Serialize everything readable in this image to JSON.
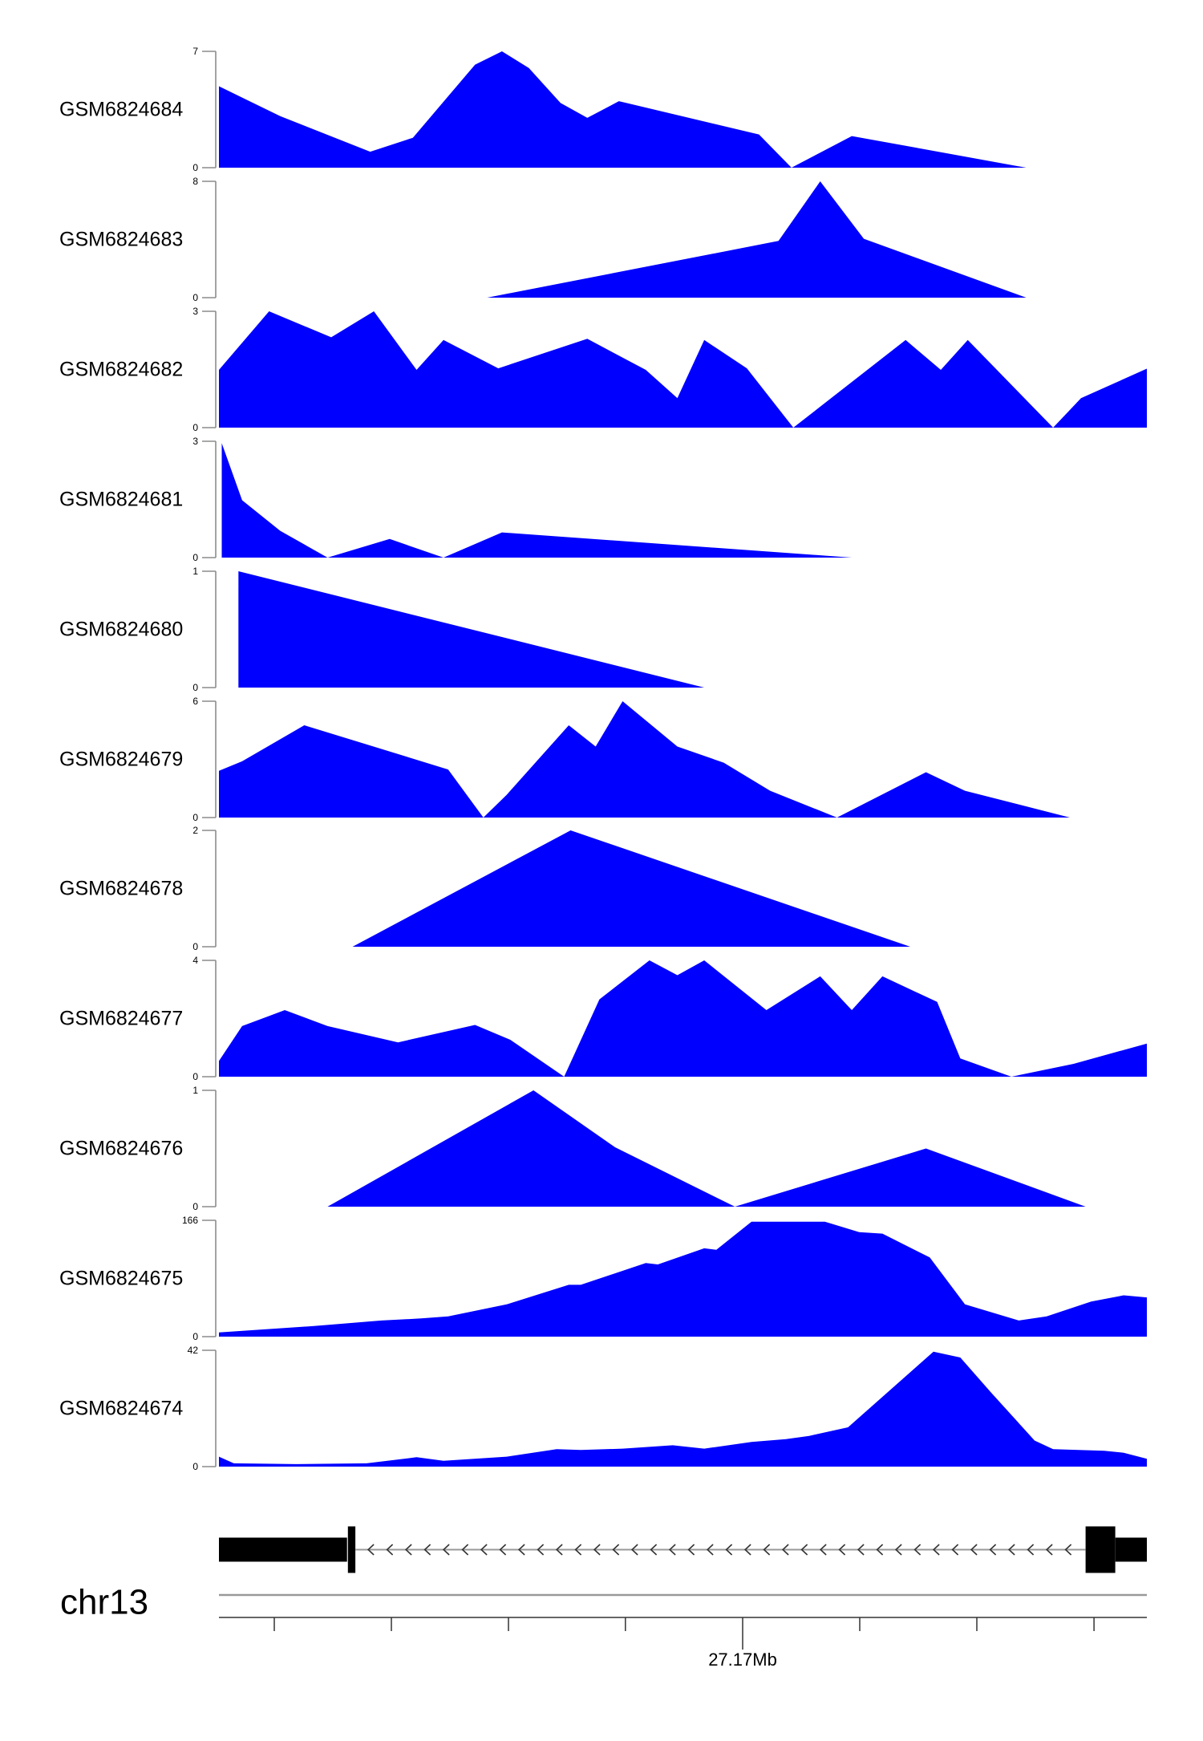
{
  "page": {
    "background": "#ffffff"
  },
  "chart_data": {
    "type": "area",
    "layout_hint": "stacked genome-browser coverage tracks, filled area plots, y axis ticks at 0 and max only",
    "colors": {
      "signal": "#0000ff",
      "gene": "#000000",
      "axis_gray": "#8c8c8c",
      "line_gray": "#999999",
      "tick_dark": "#333333",
      "text": "#000000"
    },
    "y_axis_zero": "0",
    "region": {
      "chromosome": "chr13"
    },
    "tracks": [
      {
        "label": "GSM6824684",
        "ymax": 7,
        "points": [
          [
            0.0,
            4.9
          ],
          [
            0.066,
            3.1
          ],
          [
            0.163,
            0.96
          ],
          [
            0.209,
            1.8
          ],
          [
            0.276,
            6.2
          ],
          [
            0.305,
            7
          ],
          [
            0.334,
            6
          ],
          [
            0.368,
            3.9
          ],
          [
            0.397,
            3
          ],
          [
            0.431,
            4
          ],
          [
            0.582,
            2
          ],
          [
            0.617,
            0
          ],
          [
            0.682,
            1.9
          ],
          [
            0.87,
            0
          ]
        ]
      },
      {
        "label": "GSM6824683",
        "ymax": 8,
        "points": [
          [
            0.289,
            0
          ],
          [
            0.603,
            3.9
          ],
          [
            0.648,
            8
          ],
          [
            0.695,
            4.05
          ],
          [
            0.87,
            0
          ]
        ]
      },
      {
        "label": "GSM6824682",
        "ymax": 3,
        "points": [
          [
            0.0,
            1.49
          ],
          [
            0.054,
            3
          ],
          [
            0.121,
            2.33
          ],
          [
            0.167,
            3
          ],
          [
            0.213,
            1.49
          ],
          [
            0.242,
            2.26
          ],
          [
            0.301,
            1.53
          ],
          [
            0.397,
            2.29
          ],
          [
            0.46,
            1.49
          ],
          [
            0.494,
            0.76
          ],
          [
            0.523,
            2.26
          ],
          [
            0.569,
            1.53
          ],
          [
            0.619,
            0
          ],
          [
            0.74,
            2.26
          ],
          [
            0.778,
            1.49
          ],
          [
            0.807,
            2.26
          ],
          [
            0.899,
            0
          ],
          [
            0.929,
            0.76
          ],
          [
            1.0,
            1.52
          ]
        ]
      },
      {
        "label": "GSM6824681",
        "ymax": 3,
        "points": [
          [
            0.003,
            2.95
          ],
          [
            0.025,
            1.48
          ],
          [
            0.066,
            0.69
          ],
          [
            0.117,
            0
          ],
          [
            0.184,
            0.48
          ],
          [
            0.242,
            0
          ],
          [
            0.305,
            0.65
          ],
          [
            0.682,
            0
          ]
        ]
      },
      {
        "label": "GSM6824680",
        "ymax": 1,
        "points": [
          [
            0.021,
            1
          ],
          [
            0.523,
            0
          ]
        ]
      },
      {
        "label": "GSM6824679",
        "ymax": 6,
        "points": [
          [
            0.0,
            2.41
          ],
          [
            0.025,
            2.9
          ],
          [
            0.092,
            4.76
          ],
          [
            0.247,
            2.48
          ],
          [
            0.285,
            0
          ],
          [
            0.31,
            1.17
          ],
          [
            0.377,
            4.76
          ],
          [
            0.406,
            3.66
          ],
          [
            0.435,
            6
          ],
          [
            0.494,
            3.66
          ],
          [
            0.544,
            2.83
          ],
          [
            0.594,
            1.38
          ],
          [
            0.666,
            0
          ],
          [
            0.762,
            2.34
          ],
          [
            0.804,
            1.38
          ],
          [
            0.917,
            0
          ]
        ]
      },
      {
        "label": "GSM6824678",
        "ymax": 2,
        "points": [
          [
            0.144,
            0
          ],
          [
            0.379,
            2
          ],
          [
            0.745,
            0
          ]
        ]
      },
      {
        "label": "GSM6824677",
        "ymax": 4,
        "points": [
          [
            0.0,
            0.54
          ],
          [
            0.025,
            1.74
          ],
          [
            0.071,
            2.29
          ],
          [
            0.117,
            1.74
          ],
          [
            0.193,
            1.18
          ],
          [
            0.276,
            1.78
          ],
          [
            0.314,
            1.27
          ],
          [
            0.372,
            0
          ],
          [
            0.41,
            2.66
          ],
          [
            0.464,
            4
          ],
          [
            0.494,
            3.49
          ],
          [
            0.523,
            4
          ],
          [
            0.59,
            2.29
          ],
          [
            0.648,
            3.45
          ],
          [
            0.682,
            2.29
          ],
          [
            0.715,
            3.45
          ],
          [
            0.774,
            2.57
          ],
          [
            0.799,
            0.63
          ],
          [
            0.854,
            0
          ],
          [
            0.921,
            0.44
          ],
          [
            1.0,
            1.14
          ]
        ]
      },
      {
        "label": "GSM6824676",
        "ymax": 1,
        "points": [
          [
            0.117,
            0
          ],
          [
            0.339,
            1
          ],
          [
            0.427,
            0.51
          ],
          [
            0.556,
            0
          ],
          [
            0.762,
            0.5
          ],
          [
            0.934,
            0
          ]
        ]
      },
      {
        "label": "GSM6824675",
        "ymax": 166,
        "points": [
          [
            0.0,
            6
          ],
          [
            0.101,
            15
          ],
          [
            0.175,
            23
          ],
          [
            0.218,
            26
          ],
          [
            0.247,
            29
          ],
          [
            0.31,
            46
          ],
          [
            0.377,
            74
          ],
          [
            0.39,
            74
          ],
          [
            0.46,
            105
          ],
          [
            0.473,
            103
          ],
          [
            0.523,
            126
          ],
          [
            0.536,
            124
          ],
          [
            0.574,
            164
          ],
          [
            0.653,
            164
          ],
          [
            0.69,
            149
          ],
          [
            0.715,
            147
          ],
          [
            0.766,
            113
          ],
          [
            0.804,
            46
          ],
          [
            0.862,
            23
          ],
          [
            0.892,
            29
          ],
          [
            0.94,
            50
          ],
          [
            0.975,
            59
          ],
          [
            1.0,
            56
          ]
        ]
      },
      {
        "label": "GSM6824674",
        "ymax": 42,
        "points": [
          [
            0.0,
            3.6
          ],
          [
            0.016,
            1.2
          ],
          [
            0.083,
            0.9
          ],
          [
            0.159,
            1.2
          ],
          [
            0.213,
            3.4
          ],
          [
            0.242,
            2.1
          ],
          [
            0.31,
            3.6
          ],
          [
            0.364,
            6.3
          ],
          [
            0.39,
            6
          ],
          [
            0.435,
            6.5
          ],
          [
            0.489,
            7.7
          ],
          [
            0.523,
            6.5
          ],
          [
            0.574,
            8.9
          ],
          [
            0.611,
            9.9
          ],
          [
            0.636,
            11.1
          ],
          [
            0.678,
            14.2
          ],
          [
            0.77,
            41.5
          ],
          [
            0.799,
            39.4
          ],
          [
            0.832,
            26.8
          ],
          [
            0.879,
            9.4
          ],
          [
            0.899,
            6.3
          ],
          [
            0.954,
            5.7
          ],
          [
            0.975,
            5
          ],
          [
            1.0,
            2.8
          ]
        ]
      }
    ],
    "gene_model": {
      "strand": "minus",
      "exons": [
        {
          "x0": 0.0,
          "x1": 0.138,
          "type": "thick"
        },
        {
          "x0": 0.139,
          "x1": 0.147,
          "type": "tall"
        },
        {
          "x0": 0.934,
          "x1": 0.966,
          "type": "tall"
        },
        {
          "x0": 0.966,
          "x1": 1.0,
          "type": "thick"
        }
      ],
      "intron": {
        "x0": 0.147,
        "x1": 0.934
      }
    },
    "genome_axis": {
      "ticks": [
        {
          "x": 0.0596
        },
        {
          "x": 0.1858
        },
        {
          "x": 0.312
        },
        {
          "x": 0.438
        },
        {
          "x": 0.5644,
          "label": "27.17Mb"
        },
        {
          "x": 0.6906
        },
        {
          "x": 0.8168
        },
        {
          "x": 0.943
        }
      ]
    }
  }
}
